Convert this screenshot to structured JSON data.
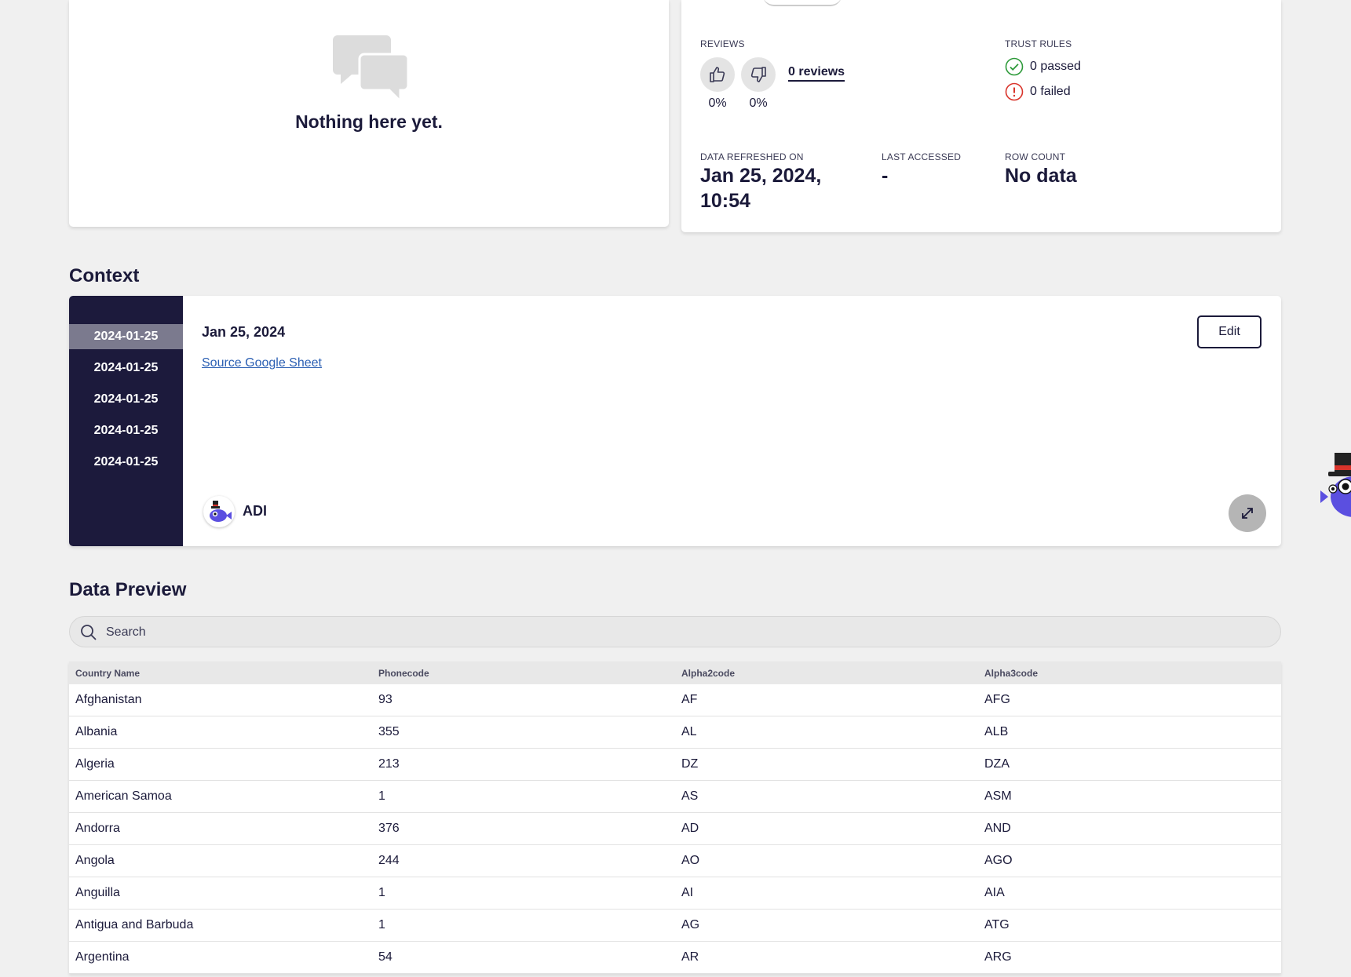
{
  "empty_state": {
    "text": "Nothing here yet."
  },
  "stats": {
    "reviews_label": "REVIEWS",
    "thumbs_up_pct": "0%",
    "thumbs_down_pct": "0%",
    "reviews_link": "0 reviews",
    "trust_rules_label": "TRUST RULES",
    "passed": "0 passed",
    "failed": "0 failed",
    "refreshed_label": "DATA REFRESHED ON",
    "refreshed_line1": "Jan 25, 2024,",
    "refreshed_line2": "10:54",
    "accessed_label": "LAST ACCESSED",
    "accessed_value": "-",
    "rowcount_label": "ROW COUNT",
    "rowcount_value": "No data",
    "colors": {
      "pass": "#2e9a3a",
      "fail": "#d9342b"
    }
  },
  "context": {
    "title": "Context",
    "dates": [
      "2024-01-25",
      "2024-01-25",
      "2024-01-25",
      "2024-01-25",
      "2024-01-25"
    ],
    "active_index": 0,
    "entry_date": "Jan 25, 2024",
    "entry_link": "Source Google Sheet",
    "edit_label": "Edit",
    "author": "ADI"
  },
  "preview": {
    "title": "Data Preview",
    "search_placeholder": "Search",
    "columns": [
      "Country Name",
      "Phonecode",
      "Alpha2code",
      "Alpha3code"
    ],
    "rows": [
      [
        "Afghanistan",
        "93",
        "AF",
        "AFG"
      ],
      [
        "Albania",
        "355",
        "AL",
        "ALB"
      ],
      [
        "Algeria",
        "213",
        "DZ",
        "DZA"
      ],
      [
        "American Samoa",
        "1",
        "AS",
        "ASM"
      ],
      [
        "Andorra",
        "376",
        "AD",
        "AND"
      ],
      [
        "Angola",
        "244",
        "AO",
        "AGO"
      ],
      [
        "Anguilla",
        "1",
        "AI",
        "AIA"
      ],
      [
        "Antigua and Barbuda",
        "1",
        "AG",
        "ATG"
      ],
      [
        "Argentina",
        "54",
        "AR",
        "ARG"
      ]
    ]
  }
}
